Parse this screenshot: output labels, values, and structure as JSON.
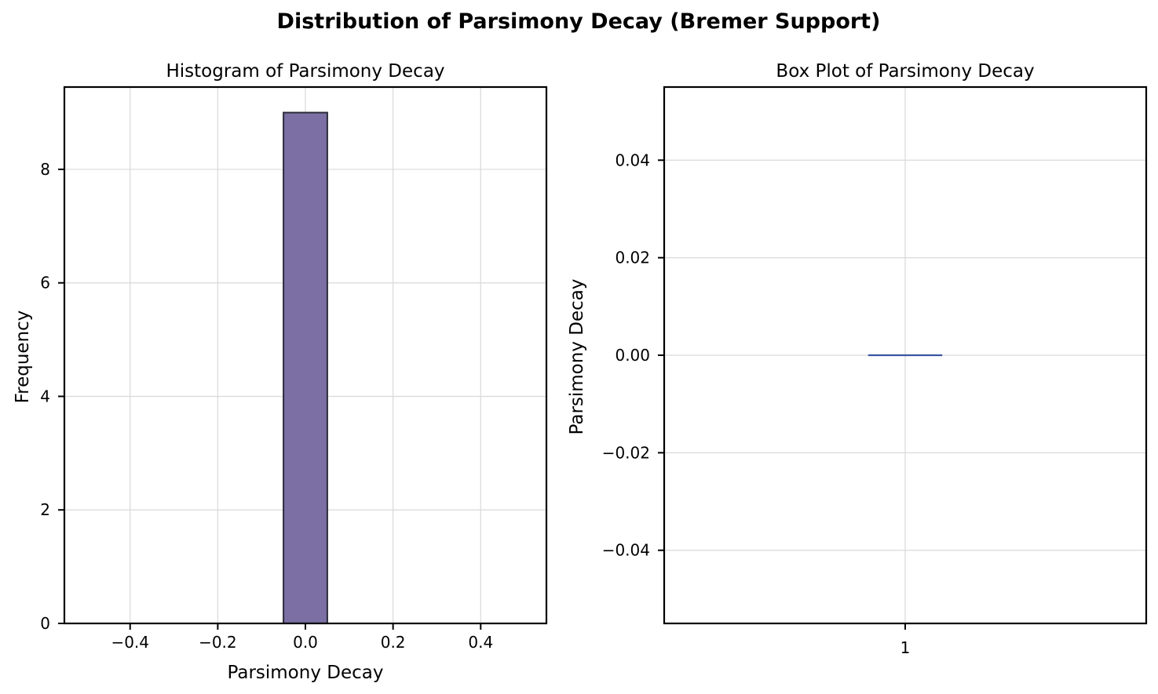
{
  "figure": {
    "title": "Distribution of Parsimony Decay (Bremer Support)"
  },
  "chart_data": [
    {
      "type": "bar",
      "subtype": "histogram",
      "title": "Histogram of Parsimony Decay",
      "xlabel": "Parsimony Decay",
      "ylabel": "Frequency",
      "xlim": [
        -0.55,
        0.55
      ],
      "ylim": [
        0,
        9.45
      ],
      "xticks": [
        -0.4,
        -0.2,
        0.0,
        0.2,
        0.4
      ],
      "xtick_labels": [
        "−0.4",
        "−0.2",
        "0.0",
        "0.2",
        "0.4"
      ],
      "yticks": [
        0,
        2,
        4,
        6,
        8
      ],
      "ytick_labels": [
        "0",
        "2",
        "4",
        "6",
        "8"
      ],
      "bins": [
        {
          "x0": -0.5,
          "x1": -0.4,
          "count": 0
        },
        {
          "x0": -0.4,
          "x1": -0.3,
          "count": 0
        },
        {
          "x0": -0.3,
          "x1": -0.2,
          "count": 0
        },
        {
          "x0": -0.2,
          "x1": -0.1,
          "count": 0
        },
        {
          "x0": -0.1,
          "x1": -0.05,
          "count": 0
        },
        {
          "x0": -0.05,
          "x1": 0.05,
          "count": 9
        },
        {
          "x0": 0.05,
          "x1": 0.1,
          "count": 0
        },
        {
          "x0": 0.1,
          "x1": 0.2,
          "count": 0
        },
        {
          "x0": 0.2,
          "x1": 0.3,
          "count": 0
        },
        {
          "x0": 0.3,
          "x1": 0.4,
          "count": 0
        },
        {
          "x0": 0.4,
          "x1": 0.5,
          "count": 0
        }
      ],
      "bar_color": "#7b6fa3",
      "edge_color": "#2b2b3a",
      "grid": true
    },
    {
      "type": "box",
      "title": "Box Plot of Parsimony Decay",
      "xlabel": "",
      "ylabel": "Parsimony Decay",
      "ylim": [
        -0.055,
        0.055
      ],
      "yticks": [
        -0.04,
        -0.02,
        0.0,
        0.02,
        0.04
      ],
      "ytick_labels": [
        "−0.04",
        "−0.02",
        "0.00",
        "0.02",
        "0.04"
      ],
      "categories": [
        "1"
      ],
      "boxes": [
        {
          "label": "1",
          "min": 0.0,
          "q1": 0.0,
          "median": 0.0,
          "q3": 0.0,
          "max": 0.0
        }
      ],
      "median_color": "#3a56a0",
      "grid": true
    }
  ]
}
